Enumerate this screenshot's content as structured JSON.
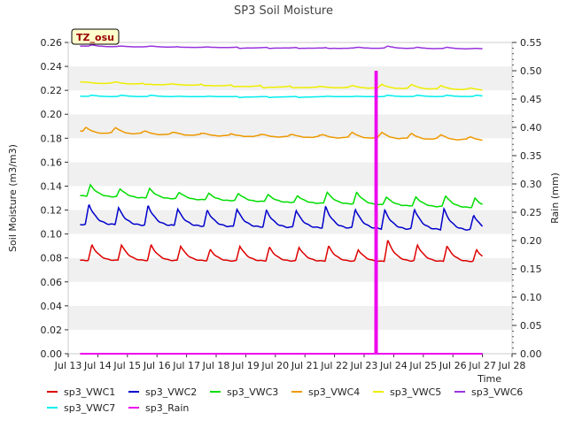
{
  "chart_data": {
    "type": "line",
    "title": "SP3 Soil Moisture",
    "xlabel": "Time",
    "ylabel": "Soil Moisture (m3/m3)",
    "y2label": "Rain (mm)",
    "badge": "TZ_osu",
    "xlim": [
      13,
      28
    ],
    "ylim": [
      0,
      0.26
    ],
    "y2lim": [
      0,
      0.55
    ],
    "x_ticks": [
      13,
      14,
      15,
      16,
      17,
      18,
      19,
      20,
      21,
      22,
      23,
      24,
      25,
      26,
      27,
      28
    ],
    "x_tick_labels": [
      "Jul 13",
      "Jul 14",
      "Jul 15",
      "Jul 16",
      "Jul 17",
      "Jul 18",
      "Jul 19",
      "Jul 20",
      "Jul 21",
      "Jul 22",
      "Jul 23",
      "Jul 24",
      "Jul 25",
      "Jul 26",
      "Jul 27",
      "Jul 28"
    ],
    "y_ticks": [
      0,
      0.02,
      0.04,
      0.06,
      0.08,
      0.1,
      0.12,
      0.14,
      0.16,
      0.18,
      0.2,
      0.22,
      0.24,
      0.26
    ],
    "y_tick_labels": [
      "0.00",
      "0.02",
      "0.04",
      "0.06",
      "0.08",
      "0.10",
      "0.12",
      "0.14",
      "0.16",
      "0.18",
      "0.20",
      "0.22",
      "0.24",
      "0.26"
    ],
    "y2_ticks": [
      0,
      0.05,
      0.1,
      0.15,
      0.2,
      0.25,
      0.3,
      0.35,
      0.4,
      0.45,
      0.5,
      0.55
    ],
    "y2_tick_labels": [
      "0.00",
      "0.05",
      "0.10",
      "0.15",
      "0.20",
      "0.25",
      "0.30",
      "0.35",
      "0.40",
      "0.45",
      "0.50",
      "0.55"
    ],
    "grid": "horizontal bands",
    "legend_placement": "bottom",
    "x_start": 13.4,
    "x_end": 27.0,
    "series": [
      {
        "name": "sp3_VWC1",
        "color": "#dd0000",
        "axis": "left",
        "trend": [
          0.078,
          0.077
        ],
        "amp": 0.012,
        "dip": 0.001,
        "peaks": [
          [
            13.8,
            0.091
          ],
          [
            14.8,
            0.091
          ],
          [
            15.8,
            0.091
          ],
          [
            16.8,
            0.09
          ],
          [
            17.8,
            0.087
          ],
          [
            18.8,
            0.09
          ],
          [
            19.8,
            0.089
          ],
          [
            20.8,
            0.089
          ],
          [
            21.8,
            0.09
          ],
          [
            22.8,
            0.087
          ],
          [
            23.8,
            0.095
          ],
          [
            24.8,
            0.091
          ],
          [
            25.8,
            0.09
          ],
          [
            26.8,
            0.087
          ]
        ]
      },
      {
        "name": "sp3_VWC2",
        "color": "#0000cc",
        "axis": "left",
        "trend": [
          0.108,
          0.103
        ],
        "amp": 0.018,
        "dip": 0.001,
        "peaks": [
          [
            13.7,
            0.125
          ],
          [
            14.7,
            0.122
          ],
          [
            15.7,
            0.124
          ],
          [
            16.7,
            0.121
          ],
          [
            17.7,
            0.12
          ],
          [
            18.7,
            0.121
          ],
          [
            19.7,
            0.12
          ],
          [
            20.7,
            0.12
          ],
          [
            21.7,
            0.123
          ],
          [
            22.7,
            0.121
          ],
          [
            23.7,
            0.12
          ],
          [
            24.7,
            0.121
          ],
          [
            25.7,
            0.121
          ],
          [
            26.7,
            0.116
          ]
        ]
      },
      {
        "name": "sp3_VWC3",
        "color": "#00dd00",
        "axis": "left",
        "trend": [
          0.132,
          0.122
        ],
        "amp": 0.01,
        "dip": 0.001,
        "peaks": [
          [
            13.75,
            0.141
          ],
          [
            14.75,
            0.138
          ],
          [
            15.75,
            0.138
          ],
          [
            16.75,
            0.135
          ],
          [
            17.75,
            0.134
          ],
          [
            18.75,
            0.134
          ],
          [
            19.75,
            0.133
          ],
          [
            20.75,
            0.132
          ],
          [
            21.75,
            0.135
          ],
          [
            22.75,
            0.135
          ],
          [
            23.75,
            0.131
          ],
          [
            24.75,
            0.131
          ],
          [
            25.75,
            0.132
          ],
          [
            26.75,
            0.13
          ]
        ]
      },
      {
        "name": "sp3_VWC4",
        "color": "#ee9900",
        "axis": "left",
        "trend": [
          0.186,
          0.18
        ],
        "amp": 0.005,
        "dip": 0.002,
        "peaks": [
          [
            13.6,
            0.189
          ],
          [
            14.6,
            0.189
          ],
          [
            15.6,
            0.186
          ],
          [
            16.6,
            0.185
          ],
          [
            17.6,
            0.184
          ],
          [
            18.6,
            0.183
          ],
          [
            19.6,
            0.183
          ],
          [
            20.6,
            0.183
          ],
          [
            21.6,
            0.183
          ],
          [
            22.6,
            0.185
          ],
          [
            23.6,
            0.185
          ],
          [
            24.6,
            0.184
          ],
          [
            25.6,
            0.183
          ],
          [
            26.6,
            0.181
          ]
        ]
      },
      {
        "name": "sp3_VWC5",
        "color": "#eeee00",
        "axis": "left",
        "trend": [
          0.227,
          0.221
        ],
        "amp": 0.003,
        "dip": 0.001,
        "peaks": [
          [
            13.6,
            0.227
          ],
          [
            14.6,
            0.227
          ],
          [
            15.6,
            0.225
          ],
          [
            16.6,
            0.225
          ],
          [
            17.6,
            0.224
          ],
          [
            18.6,
            0.223
          ],
          [
            19.6,
            0.222
          ],
          [
            20.6,
            0.222
          ],
          [
            21.6,
            0.223
          ],
          [
            22.6,
            0.224
          ],
          [
            23.6,
            0.225
          ],
          [
            24.6,
            0.225
          ],
          [
            25.6,
            0.224
          ],
          [
            26.6,
            0.222
          ]
        ]
      },
      {
        "name": "sp3_VWC6",
        "color": "#9933dd",
        "axis": "left",
        "trend": [
          0.257,
          0.255
        ],
        "amp": 0.001,
        "dip": 0.0005,
        "peaks": [
          [
            13.8,
            0.258
          ],
          [
            14.8,
            0.257
          ],
          [
            15.8,
            0.257
          ],
          [
            16.8,
            0.256
          ],
          [
            17.8,
            0.256
          ],
          [
            18.8,
            0.255
          ],
          [
            19.8,
            0.255
          ],
          [
            20.8,
            0.255
          ],
          [
            21.8,
            0.255
          ],
          [
            22.8,
            0.256
          ],
          [
            23.8,
            0.257
          ],
          [
            24.8,
            0.256
          ],
          [
            25.8,
            0.256
          ],
          [
            26.8,
            0.255
          ]
        ]
      },
      {
        "name": "sp3_VWC7",
        "color": "#00eeee",
        "axis": "left",
        "trend": [
          0.215,
          0.215
        ],
        "amp": 0.0005,
        "dip": 0.0003,
        "peaks": [
          [
            13.8,
            0.216
          ],
          [
            14.8,
            0.216
          ],
          [
            15.8,
            0.216
          ],
          [
            16.8,
            0.215
          ],
          [
            17.8,
            0.215
          ],
          [
            18.8,
            0.214
          ],
          [
            19.8,
            0.214
          ],
          [
            20.8,
            0.214
          ],
          [
            21.8,
            0.215
          ],
          [
            22.8,
            0.215
          ],
          [
            23.8,
            0.216
          ],
          [
            24.8,
            0.216
          ],
          [
            25.8,
            0.216
          ],
          [
            26.8,
            0.216
          ]
        ]
      },
      {
        "name": "sp3_Rain",
        "color": "#ee00ee",
        "axis": "right",
        "baseline": 0.0,
        "spikes": [
          [
            23.38,
            0.5
          ],
          [
            23.43,
            0.5
          ]
        ]
      }
    ]
  }
}
